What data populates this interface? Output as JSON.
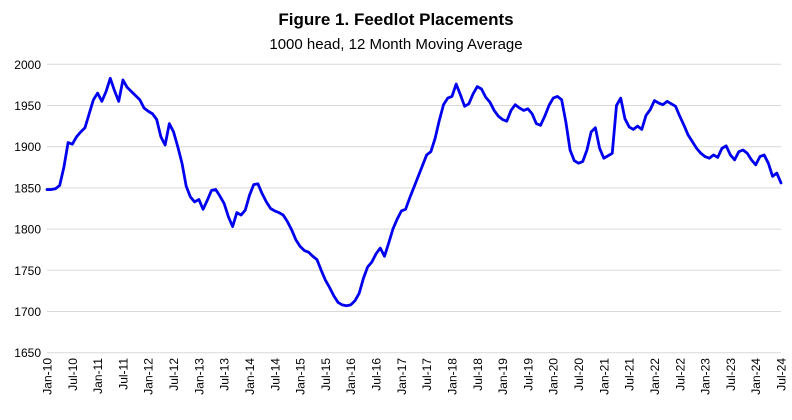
{
  "header": {
    "title": "Figure 1. Feedlot Placements",
    "subtitle": "1000 head, 12 Month Moving Average"
  },
  "chart_data": {
    "type": "line",
    "title": "Figure 1. Feedlot Placements",
    "subtitle": "1000 head, 12 Month Moving Average",
    "series_name": "Feedlot placements, 12 month moving average (1000 head)",
    "x_start": "Jan-10",
    "x_end": "Jul-24",
    "x_frequency": "monthly",
    "x_tick_labels": [
      "Jan-10",
      "Jul-10",
      "Jan-11",
      "Jul-11",
      "Jan-12",
      "Jul-12",
      "Jan-13",
      "Jul-13",
      "Jan-14",
      "Jul-14",
      "Jan-15",
      "Jul-15",
      "Jan-16",
      "Jul-16",
      "Jan-17",
      "Jul-17",
      "Jan-18",
      "Jul-18",
      "Jan-19",
      "Jul-19",
      "Jan-20",
      "Jul-20",
      "Jan-21",
      "Jul-21",
      "Jan-22",
      "Jul-22",
      "Jan-23",
      "Jul-23",
      "Jan-24",
      "Jul-24"
    ],
    "x_ticks_every_n_months": 6,
    "yticks": [
      1650,
      1700,
      1750,
      1800,
      1850,
      1900,
      1950,
      2000
    ],
    "ylim": [
      1650,
      2000
    ],
    "grid": "horizontal",
    "legend": "none",
    "line_color": "#0000EE",
    "gridline_color": "#D9D9D9",
    "text_color": "#000000",
    "background_color": "#FFFFFF",
    "values": [
      1848,
      1848,
      1849,
      1853,
      1875,
      1905,
      1903,
      1912,
      1918,
      1923,
      1940,
      1957,
      1965,
      1955,
      1967,
      1983,
      1968,
      1955,
      1981,
      1972,
      1967,
      1962,
      1957,
      1947,
      1943,
      1940,
      1933,
      1912,
      1902,
      1928,
      1918,
      1900,
      1880,
      1852,
      1839,
      1833,
      1836,
      1824,
      1835,
      1847,
      1848,
      1840,
      1831,
      1815,
      1803,
      1820,
      1817,
      1823,
      1841,
      1854,
      1855,
      1843,
      1833,
      1825,
      1822,
      1820,
      1817,
      1809,
      1799,
      1787,
      1779,
      1774,
      1772,
      1767,
      1763,
      1750,
      1738,
      1729,
      1719,
      1711,
      1708,
      1707,
      1708,
      1713,
      1722,
      1740,
      1754,
      1760,
      1770,
      1777,
      1767,
      1783,
      1800,
      1812,
      1822,
      1824,
      1838,
      1851,
      1864,
      1877,
      1890,
      1894,
      1910,
      1932,
      1951,
      1959,
      1961,
      1976,
      1963,
      1949,
      1952,
      1964,
      1973,
      1970,
      1960,
      1954,
      1944,
      1937,
      1933,
      1931,
      1944,
      1951,
      1947,
      1944,
      1946,
      1940,
      1928,
      1926,
      1937,
      1950,
      1959,
      1961,
      1957,
      1930,
      1896,
      1883,
      1880,
      1882,
      1896,
      1918,
      1923,
      1898,
      1886,
      1889,
      1892,
      1950,
      1959,
      1934,
      1924,
      1921,
      1925,
      1921,
      1938,
      1945,
      1956,
      1953,
      1951,
      1955,
      1952,
      1949,
      1937,
      1926,
      1914,
      1906,
      1898,
      1892,
      1888,
      1886,
      1890,
      1887,
      1898,
      1901,
      1890,
      1884,
      1894,
      1896,
      1892,
      1884,
      1878,
      1888,
      1890,
      1880,
      1864,
      1868,
      1856
    ]
  }
}
